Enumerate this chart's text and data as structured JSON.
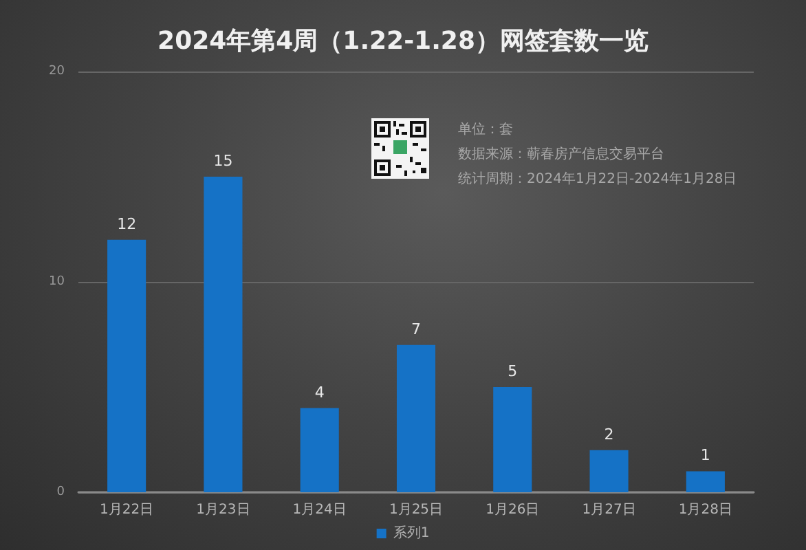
{
  "chart_data": {
    "type": "bar",
    "title": "2024年第4周（1.22-1.28）网签套数一览",
    "categories": [
      "1月22日",
      "1月23日",
      "1月24日",
      "1月25日",
      "1月26日",
      "1月27日",
      "1月28日"
    ],
    "series": [
      {
        "name": "系列1",
        "color": "#1572c6",
        "values": [
          12,
          15,
          4,
          7,
          5,
          2,
          1
        ]
      }
    ],
    "ylim": [
      0,
      20
    ],
    "yticks": [
      0,
      10,
      20
    ],
    "grid": "y",
    "legend": "bottom",
    "data_labels": true,
    "annotations": [
      "单位：套",
      "数据来源：蕲春房产信息交易平台",
      "统计周期：2024年1月22日-2024年1月28日"
    ]
  }
}
